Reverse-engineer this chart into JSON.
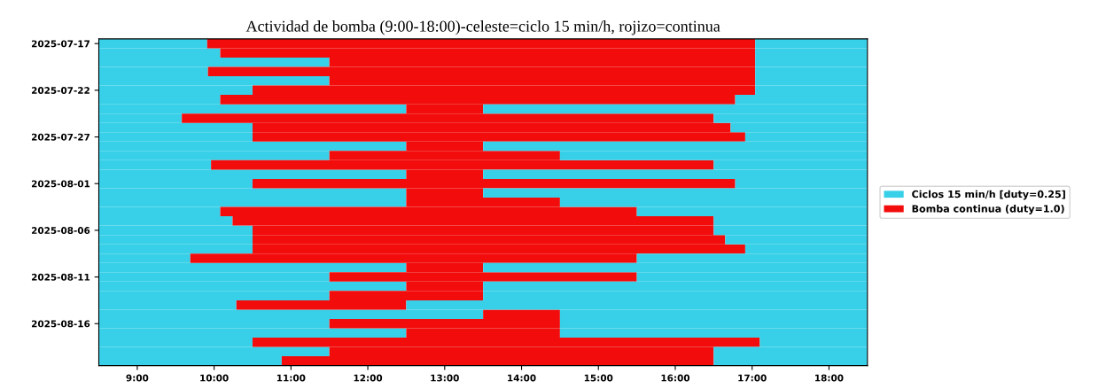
{
  "chart_data": {
    "type": "bar",
    "orientation": "horizontal",
    "title": "Actividad de bomba (9:00-18:00)-celeste=ciclo 15 min/h, rojizo=continua",
    "categories": [
      "2025-07-17",
      null,
      null,
      null,
      null,
      "2025-07-22",
      null,
      null,
      null,
      null,
      "2025-07-27",
      null,
      null,
      null,
      null,
      "2025-08-01",
      null,
      null,
      null,
      null,
      "2025-08-06",
      null,
      null,
      null,
      null,
      "2025-08-11",
      null,
      null,
      null,
      null,
      "2025-08-16",
      null,
      null,
      null,
      null
    ],
    "series": [
      {
        "name": "Ciclos 15 min/h [duty=0.25]",
        "color": "#38d0e8",
        "base": [
          8.5,
          8.5,
          8.5,
          8.5,
          8.5,
          8.5,
          8.5,
          8.5,
          8.5,
          8.5,
          8.5,
          8.5,
          8.5,
          8.5,
          8.5,
          8.5,
          8.5,
          8.5,
          8.5,
          8.5,
          8.5,
          8.5,
          8.5,
          8.5,
          8.5,
          8.5,
          8.5,
          8.5,
          8.5,
          8.5,
          8.5,
          8.5,
          8.5,
          8.5,
          8.5
        ],
        "values": [
          1.41,
          1.58,
          3.0,
          1.42,
          3.0,
          2.0,
          1.58,
          4.0,
          1.08,
          2.0,
          2.0,
          4.0,
          3.0,
          1.46,
          4.0,
          2.0,
          4.0,
          4.0,
          1.58,
          1.74,
          2.0,
          2.0,
          2.0,
          1.19,
          4.0,
          3.0,
          4.0,
          3.0,
          1.79,
          5.0,
          3.0,
          4.0,
          2.0,
          3.0,
          2.38
        ]
      },
      {
        "name": "Bomba continua (duty=1.0)",
        "color": "#f20c0c",
        "base": [
          9.91,
          10.08,
          11.5,
          9.92,
          11.5,
          10.5,
          10.08,
          12.5,
          9.58,
          10.5,
          10.5,
          12.5,
          11.5,
          9.96,
          12.5,
          10.5,
          12.5,
          12.5,
          10.08,
          10.24,
          10.5,
          10.5,
          10.5,
          9.69,
          12.5,
          11.5,
          12.5,
          11.5,
          10.29,
          13.5,
          11.5,
          12.5,
          10.5,
          11.5,
          10.88
        ],
        "values": [
          7.13,
          6.96,
          5.54,
          7.12,
          5.54,
          6.54,
          6.7,
          1.0,
          6.92,
          6.22,
          6.41,
          1.0,
          3.0,
          6.54,
          1.0,
          6.28,
          1.0,
          2.0,
          5.42,
          6.26,
          6.0,
          6.15,
          6.41,
          5.81,
          1.0,
          4.0,
          1.0,
          2.0,
          2.21,
          1.0,
          3.0,
          2.0,
          6.6,
          5.0,
          5.62
        ]
      },
      {
        "color": "#38d0e8",
        "base": [
          17.04,
          17.04,
          17.04,
          17.04,
          17.04,
          17.04,
          16.78,
          13.5,
          16.5,
          16.72,
          16.91,
          13.5,
          14.5,
          16.5,
          13.5,
          16.78,
          13.5,
          14.5,
          15.5,
          16.5,
          16.5,
          16.65,
          16.91,
          15.5,
          13.5,
          15.5,
          13.5,
          13.5,
          12.5,
          14.5,
          14.5,
          14.5,
          17.1,
          16.5,
          16.5
        ],
        "values": [
          1.46,
          1.46,
          1.46,
          1.46,
          1.46,
          1.46,
          1.72,
          5.0,
          2.0,
          1.78,
          1.59,
          5.0,
          4.0,
          2.0,
          5.0,
          1.72,
          5.0,
          4.0,
          3.0,
          2.0,
          2.0,
          1.85,
          1.59,
          3.0,
          5.0,
          3.0,
          5.0,
          5.0,
          6.0,
          4.0,
          4.0,
          4.0,
          1.4,
          2.0,
          2.0
        ]
      }
    ],
    "xlim": [
      8.5,
      18.5
    ],
    "xticks": [
      {
        "value": 9,
        "label": "9:00"
      },
      {
        "value": 10,
        "label": "10:00"
      },
      {
        "value": 11,
        "label": "11:00"
      },
      {
        "value": 12,
        "label": "12:00"
      },
      {
        "value": 13,
        "label": "13:00"
      },
      {
        "value": 14,
        "label": "14:00"
      },
      {
        "value": 15,
        "label": "15:00"
      },
      {
        "value": 16,
        "label": "16:00"
      },
      {
        "value": 17,
        "label": "17:00"
      },
      {
        "value": 18,
        "label": "18:00"
      }
    ],
    "legend": "right"
  }
}
